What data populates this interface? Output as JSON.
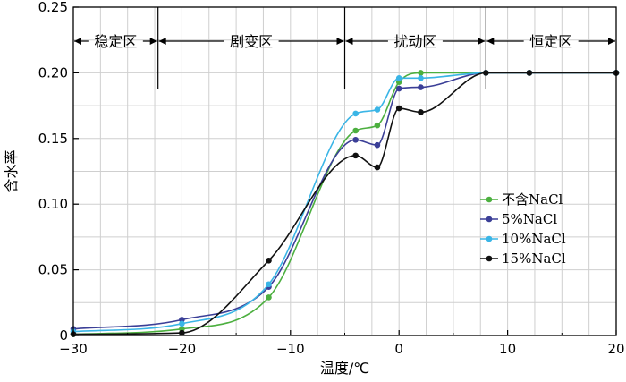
{
  "chart_data": {
    "type": "line",
    "title": "",
    "xlabel": "温度/℃",
    "ylabel": "含水率",
    "xlim": [
      -30,
      20
    ],
    "ylim": [
      0,
      0.25
    ],
    "x_ticks": [
      -30,
      -20,
      -10,
      0,
      10,
      20
    ],
    "x_tick_labels": [
      "−30",
      "−20",
      "−10",
      "0",
      "10",
      "20"
    ],
    "y_ticks": [
      0,
      0.05,
      0.1,
      0.15,
      0.2,
      0.25
    ],
    "y_tick_labels": [
      "0",
      "0.05",
      "0.10",
      "0.15",
      "0.20",
      "0.25"
    ],
    "grid": true,
    "legend_position": "right",
    "regions": [
      {
        "label": "稳定区",
        "x_start": -30,
        "x_end": -22.2
      },
      {
        "label": "剧变区",
        "x_start": -22.2,
        "x_end": -5
      },
      {
        "label": "扰动区",
        "x_start": -5,
        "x_end": 8
      },
      {
        "label": "恒定区",
        "x_start": 8,
        "x_end": 20
      }
    ],
    "series": [
      {
        "name": "不含NaCl",
        "color": "#4caf3f",
        "x": [
          -30,
          -20,
          -12,
          -4,
          -2,
          0,
          2,
          8,
          12,
          20
        ],
        "y": [
          0.001,
          0.005,
          0.029,
          0.156,
          0.16,
          0.193,
          0.2,
          0.2,
          0.2,
          0.2
        ]
      },
      {
        "name": "5%NaCl",
        "color": "#3b3f97",
        "x": [
          -30,
          -20,
          -12,
          -4,
          -2,
          0,
          2,
          8,
          12,
          20
        ],
        "y": [
          0.005,
          0.012,
          0.037,
          0.149,
          0.145,
          0.188,
          0.189,
          0.2,
          0.2,
          0.2
        ]
      },
      {
        "name": "10%NaCl",
        "color": "#3ab5e6",
        "x": [
          -30,
          -20,
          -12,
          -4,
          -2,
          0,
          2,
          8,
          12,
          20
        ],
        "y": [
          0.003,
          0.009,
          0.039,
          0.169,
          0.172,
          0.196,
          0.196,
          0.2,
          0.2,
          0.2
        ]
      },
      {
        "name": "15%NaCl",
        "color": "#111111",
        "x": [
          -30,
          -20,
          -12,
          -4,
          -2,
          0,
          2,
          8,
          12,
          20
        ],
        "y": [
          0.001,
          0.002,
          0.057,
          0.137,
          0.128,
          0.173,
          0.17,
          0.2,
          0.2,
          0.2
        ]
      }
    ]
  }
}
